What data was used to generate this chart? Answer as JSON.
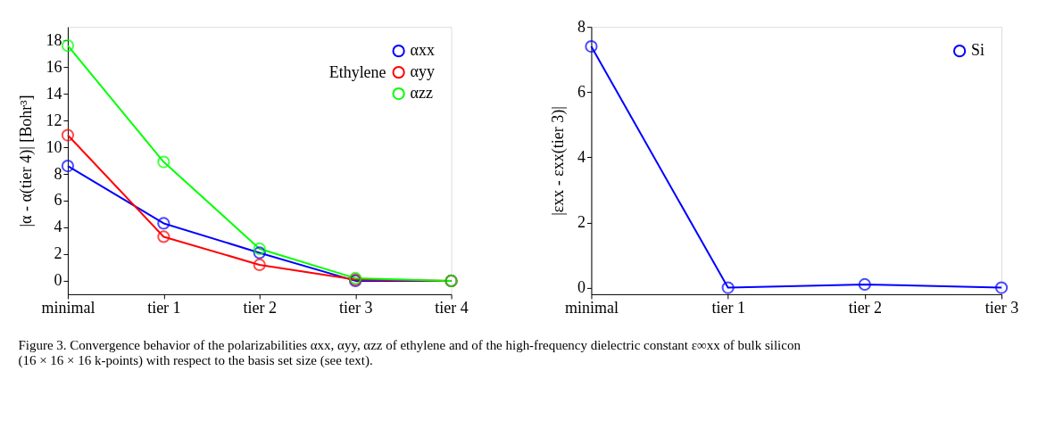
{
  "chart_data": [
    {
      "type": "line",
      "categories": [
        "minimal",
        "tier 1",
        "tier 2",
        "tier 3",
        "tier 4"
      ],
      "ylabel": "|α - α(tier 4)| [Bohr³]",
      "ylim": [
        -1,
        19
      ],
      "yticks": [
        0,
        2,
        4,
        6,
        8,
        10,
        12,
        14,
        16,
        18
      ],
      "grid": false,
      "legend": "top right",
      "legend_title": "Ethylene",
      "marker": "circle",
      "line_style": "solid",
      "series": [
        {
          "name": "αxx",
          "color": "#0000ff",
          "values": [
            8.6,
            4.3,
            2.1,
            0.0,
            0.0
          ]
        },
        {
          "name": "αyy",
          "color": "#ff0000",
          "values": [
            10.9,
            3.3,
            1.2,
            0.1,
            0.0
          ]
        },
        {
          "name": "αzz",
          "color": "#00ff00",
          "values": [
            17.6,
            8.9,
            2.4,
            0.2,
            0.0
          ]
        }
      ],
      "annotations": [
        "Figure 3. Convergence behavior of the polarizabilities αxx, αyy, αzz of ethylene and of the high-frequency dielectric constant ε∞xx of bulk silicon (16 × 16 × 16 k-points) with respect to the basis set size (see text)."
      ]
    },
    {
      "type": "line",
      "categories": [
        "minimal",
        "tier 1",
        "tier 2",
        "tier 3"
      ],
      "ylabel": "|εxx - εxx(tier 3)|",
      "ylim": [
        -0.2,
        8
      ],
      "yticks": [
        0,
        2,
        4,
        6,
        8
      ],
      "grid": false,
      "legend": "top right",
      "marker": "circle",
      "line_style": "solid",
      "series": [
        {
          "name": "Si",
          "color": "#0000ff",
          "values": [
            7.4,
            0.0,
            0.1,
            0.0
          ]
        }
      ]
    }
  ]
}
